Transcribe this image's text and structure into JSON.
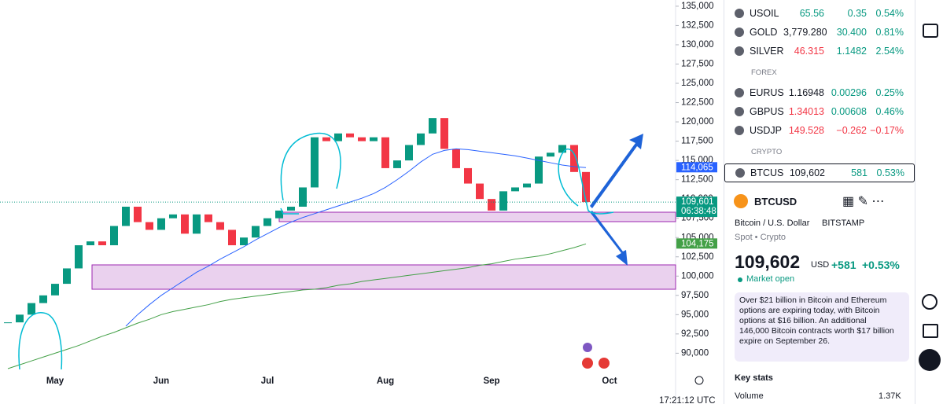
{
  "chart_data": {
    "type": "candlestick",
    "categories": [
      null,
      null,
      null,
      null,
      "May",
      null,
      null,
      null,
      null,
      null,
      null,
      null,
      null,
      "Jun",
      null,
      null,
      null,
      null,
      null,
      null,
      null,
      null,
      "Jul",
      null,
      null,
      null,
      null,
      null,
      null,
      null,
      null,
      null,
      "Aug",
      null,
      null,
      null,
      null,
      null,
      null,
      null,
      null,
      "Sep",
      null,
      null,
      null,
      null,
      null,
      null,
      null,
      null,
      null,
      "Oct",
      null,
      null,
      null,
      null,
      null
    ],
    "series": [
      {
        "name": "BTCUSD",
        "up_color": "#089981",
        "down_color": "#f23645",
        "values": [
          94000,
          95000,
          96500,
          97500,
          99000,
          101000,
          104000,
          104500,
          104000,
          106500,
          109000,
          107000,
          106000,
          107500,
          108000,
          105500,
          108000,
          107000,
          106000,
          104000,
          105000,
          106500,
          107500,
          108500,
          109000,
          111500,
          118000,
          117500,
          118500,
          118000,
          117500,
          118000,
          114000,
          115000,
          117000,
          118500,
          120500,
          116500,
          114000,
          112000,
          110000,
          108500,
          111000,
          111500,
          112000,
          115500,
          116000,
          117000,
          113500,
          109600,
          null,
          null,
          null,
          null,
          null,
          null,
          null
        ]
      },
      {
        "name": "MA50",
        "color": "#2962ff",
        "values": [
          null,
          null,
          null,
          null,
          null,
          null,
          null,
          null,
          null,
          null,
          93500,
          95000,
          96300,
          97500,
          98500,
          99500,
          100500,
          101300,
          102200,
          103000,
          103800,
          104700,
          105500,
          106300,
          107000,
          107600,
          108100,
          108600,
          109100,
          109600,
          110100,
          110700,
          111500,
          112500,
          113600,
          114800,
          115800,
          116300,
          116500,
          116400,
          116200,
          116000,
          115800,
          115600,
          115300,
          115000,
          114700,
          114400,
          114200,
          114065,
          null,
          null,
          null,
          null,
          null,
          null,
          null
        ]
      },
      {
        "name": "MA200",
        "color": "#43a047",
        "values": [
          88000,
          88500,
          89000,
          89500,
          90000,
          90500,
          91000,
          91600,
          92200,
          92700,
          93300,
          93900,
          94400,
          95000,
          95400,
          95700,
          96000,
          96300,
          96700,
          97000,
          97200,
          97400,
          97600,
          97800,
          98000,
          98200,
          98300,
          98500,
          98800,
          99000,
          99300,
          99500,
          99700,
          99900,
          100100,
          100300,
          100500,
          100700,
          100900,
          101100,
          101400,
          101600,
          101900,
          102200,
          102400,
          102600,
          102900,
          103300,
          103700,
          104175,
          null,
          null,
          null,
          null,
          null,
          null,
          null
        ]
      }
    ],
    "ylim": [
      88000,
      135500
    ],
    "yticks": [
      {
        "value": 90000,
        "label": "90,000"
      },
      {
        "value": 92500,
        "label": "92,500"
      },
      {
        "value": 95000,
        "label": "95,000"
      },
      {
        "value": 97500,
        "label": "97,500"
      },
      {
        "value": 100000,
        "label": "100,000"
      },
      {
        "value": 102500,
        "label": "102,500"
      },
      {
        "value": 105000,
        "label": "105,000"
      },
      {
        "value": 107500,
        "label": "107,500"
      },
      {
        "value": 110000,
        "label": "110,000"
      },
      {
        "value": 112500,
        "label": "112,500"
      },
      {
        "value": 115000,
        "label": "115,000"
      },
      {
        "value": 117500,
        "label": "117,500"
      },
      {
        "value": 120000,
        "label": "120,000"
      },
      {
        "value": 122500,
        "label": "122,500"
      },
      {
        "value": 125000,
        "label": "125,000"
      },
      {
        "value": 127500,
        "label": "127,500"
      },
      {
        "value": 130000,
        "label": "130,000"
      },
      {
        "value": 132500,
        "label": "132,500"
      },
      {
        "value": 135000,
        "label": "135,000"
      }
    ],
    "price_tags": [
      {
        "value": 114065,
        "label": "114,065",
        "color": "#2962ff"
      },
      {
        "value": 109601,
        "label": "109,601",
        "color": "#089981",
        "countdown": "06:38:48"
      },
      {
        "value": 104175,
        "label": "104,175",
        "color": "#43a047"
      }
    ]
  },
  "clock": "17:21:12 UTC",
  "watchlist": [
    {
      "rows": [
        {
          "symbol": "USOIL",
          "last": "65.56",
          "last_color": "#089981",
          "change": "0.35",
          "change_pct": "0.54%",
          "color": "#089981"
        },
        {
          "symbol": "GOLD",
          "last": "3,779.280",
          "last_color": "#131722",
          "change": "30.400",
          "change_pct": "0.81%",
          "color": "#089981"
        },
        {
          "symbol": "SILVER",
          "last": "46.315",
          "last_color": "#f23645",
          "change": "1.1482",
          "change_pct": "2.54%",
          "color": "#089981"
        }
      ]
    },
    {
      "title": "FOREX",
      "rows": [
        {
          "symbol": "EURUS",
          "last": "1.16948",
          "last_color": "#131722",
          "change": "0.00296",
          "change_pct": "0.25%",
          "color": "#089981"
        },
        {
          "symbol": "GBPUS",
          "last": "1.34013",
          "last_color": "#f23645",
          "change": "0.00608",
          "change_pct": "0.46%",
          "color": "#089981"
        },
        {
          "symbol": "USDJP",
          "last": "149.528",
          "last_color": "#f23645",
          "change": "−0.262",
          "change_pct": "−0.17%",
          "color": "#f23645"
        }
      ]
    },
    {
      "title": "CRYPTO",
      "rows": [
        {
          "symbol": "BTCUS",
          "last": "109,602",
          "last_color": "#131722",
          "change": "581",
          "change_pct": "0.53%",
          "color": "#089981"
        }
      ]
    }
  ],
  "symbol": {
    "ticker": "BTCUSD",
    "description": "Bitcoin / U.S. Dollar",
    "exchange": "BITSTAMP",
    "kind": "Spot • Crypto",
    "price": "109,602",
    "currency": "USD",
    "change": "+581",
    "change_pct": "+0.53%",
    "status": "Market open"
  },
  "news": "Over $21 billion in Bitcoin and Ethereum options are expiring today, with Bitcoin options at $16 billion. An additional 146,000 Bitcoin contracts worth $17 billion expire on September 26.",
  "key_stats": {
    "title": "Key stats",
    "rows": [
      {
        "label": "Volume",
        "value": "1.37K"
      }
    ]
  }
}
